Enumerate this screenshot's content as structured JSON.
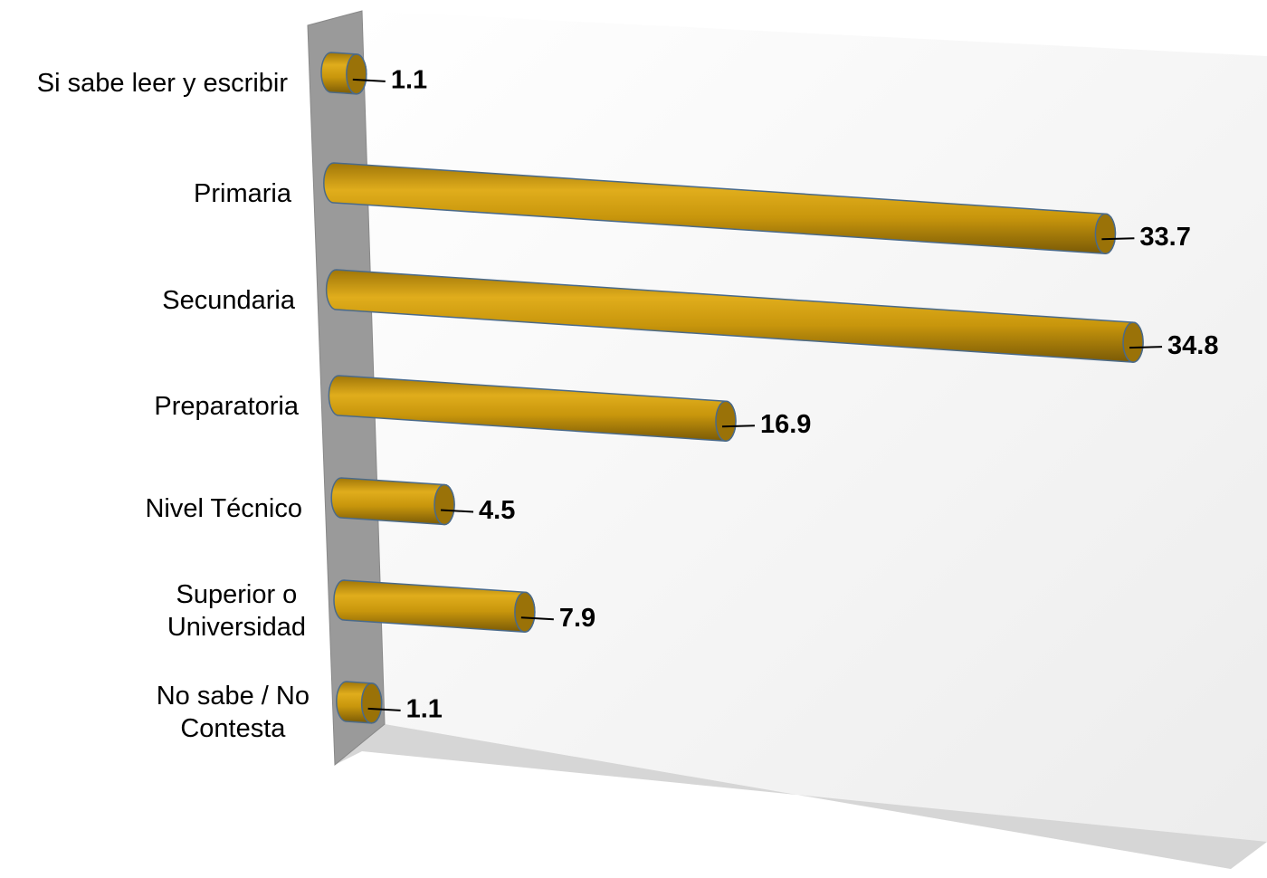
{
  "chart_data": {
    "type": "bar",
    "orientation": "horizontal",
    "color": "#c8960c",
    "categories": [
      "Si sabe leer y escribir",
      "Primaria",
      "Secundaria",
      "Preparatoria",
      "Nivel Técnico",
      "Superior o\nUniversidad",
      "No sabe / No\nContesta"
    ],
    "values": [
      1.1,
      33.7,
      34.8,
      16.9,
      4.5,
      7.9,
      1.1
    ]
  }
}
